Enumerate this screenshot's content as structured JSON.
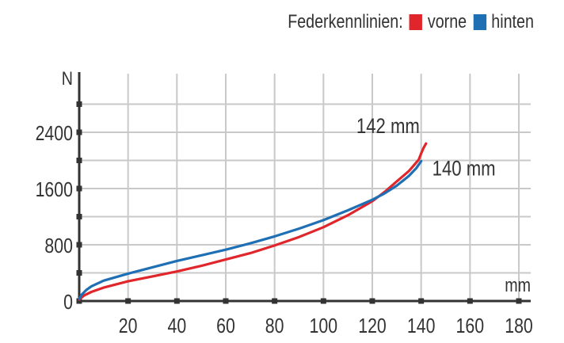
{
  "legend": {
    "title": "Federkennlinien:",
    "items": [
      {
        "label": "vorne",
        "color": "#e0252b"
      },
      {
        "label": "hinten",
        "color": "#1f6fb5"
      }
    ]
  },
  "chart_data": {
    "type": "line",
    "title": "Federkennlinien:",
    "xlabel": "mm",
    "ylabel": "N",
    "xlim": [
      0,
      180
    ],
    "ylim": [
      0,
      3000
    ],
    "x_ticks": [
      20,
      40,
      60,
      80,
      100,
      120,
      140,
      160,
      180
    ],
    "y_ticks": [
      0,
      800,
      1600,
      2400
    ],
    "grid": true,
    "legend_position": "top-right",
    "series": [
      {
        "name": "vorne",
        "color": "#e0252b",
        "points": [
          [
            0,
            20
          ],
          [
            2,
            80
          ],
          [
            5,
            130
          ],
          [
            10,
            190
          ],
          [
            20,
            280
          ],
          [
            30,
            350
          ],
          [
            40,
            420
          ],
          [
            50,
            500
          ],
          [
            60,
            590
          ],
          [
            70,
            680
          ],
          [
            80,
            790
          ],
          [
            90,
            910
          ],
          [
            100,
            1050
          ],
          [
            110,
            1220
          ],
          [
            120,
            1420
          ],
          [
            125,
            1550
          ],
          [
            130,
            1700
          ],
          [
            135,
            1850
          ],
          [
            139,
            2010
          ],
          [
            140,
            2100
          ],
          [
            141,
            2180
          ],
          [
            142,
            2240
          ]
        ]
      },
      {
        "name": "hinten",
        "color": "#1f6fb5",
        "points": [
          [
            0,
            30
          ],
          [
            1,
            90
          ],
          [
            3,
            160
          ],
          [
            5,
            210
          ],
          [
            10,
            290
          ],
          [
            20,
            390
          ],
          [
            30,
            480
          ],
          [
            40,
            570
          ],
          [
            50,
            650
          ],
          [
            60,
            730
          ],
          [
            70,
            820
          ],
          [
            80,
            920
          ],
          [
            90,
            1030
          ],
          [
            100,
            1150
          ],
          [
            110,
            1290
          ],
          [
            120,
            1440
          ],
          [
            125,
            1530
          ],
          [
            130,
            1640
          ],
          [
            135,
            1780
          ],
          [
            138,
            1890
          ],
          [
            140,
            1990
          ]
        ]
      }
    ],
    "annotations": [
      {
        "text": "142 mm",
        "x": 142,
        "y": 2240
      },
      {
        "text": "140 mm",
        "x": 140,
        "y": 1990
      }
    ]
  }
}
